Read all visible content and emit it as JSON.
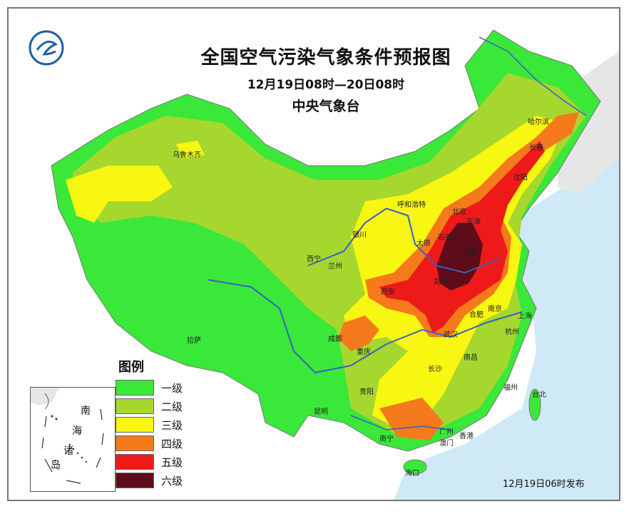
{
  "title": "全国空气污染气象条件预报图",
  "subtitle": "12月19日08时—20日08时",
  "org": "中央气象台",
  "legend": {
    "title": "图例",
    "levels": [
      {
        "label": "一级",
        "color": "#39e839"
      },
      {
        "label": "二级",
        "color": "#a6d72e"
      },
      {
        "label": "三级",
        "color": "#f7f711"
      },
      {
        "label": "四级",
        "color": "#f47a1c"
      },
      {
        "label": "五级",
        "color": "#ee1a1a"
      },
      {
        "label": "六级",
        "color": "#5e0b1a"
      }
    ]
  },
  "inset": {
    "label_1": "南",
    "label_2": "海",
    "label_3": "诸",
    "label_4": "岛"
  },
  "cities": [
    {
      "name": "乌鲁木齐"
    },
    {
      "name": "哈尔滨"
    },
    {
      "name": "长春"
    },
    {
      "name": "沈阳"
    },
    {
      "name": "呼和浩特"
    },
    {
      "name": "北京"
    },
    {
      "name": "天津"
    },
    {
      "name": "石家庄"
    },
    {
      "name": "太原"
    },
    {
      "name": "济南"
    },
    {
      "name": "银川"
    },
    {
      "name": "西宁"
    },
    {
      "name": "兰州"
    },
    {
      "name": "西安"
    },
    {
      "name": "郑州"
    },
    {
      "name": "合肥"
    },
    {
      "name": "南京"
    },
    {
      "name": "上海"
    },
    {
      "name": "武汉"
    },
    {
      "name": "杭州"
    },
    {
      "name": "拉萨"
    },
    {
      "name": "成都"
    },
    {
      "name": "重庆"
    },
    {
      "name": "长沙"
    },
    {
      "name": "南昌"
    },
    {
      "name": "福州"
    },
    {
      "name": "台北"
    },
    {
      "name": "贵阳"
    },
    {
      "name": "昆明"
    },
    {
      "name": "南宁"
    },
    {
      "name": "广州"
    },
    {
      "name": "香港"
    },
    {
      "name": "澳门"
    },
    {
      "name": "海口"
    }
  ],
  "release": "12月19日06时发布"
}
